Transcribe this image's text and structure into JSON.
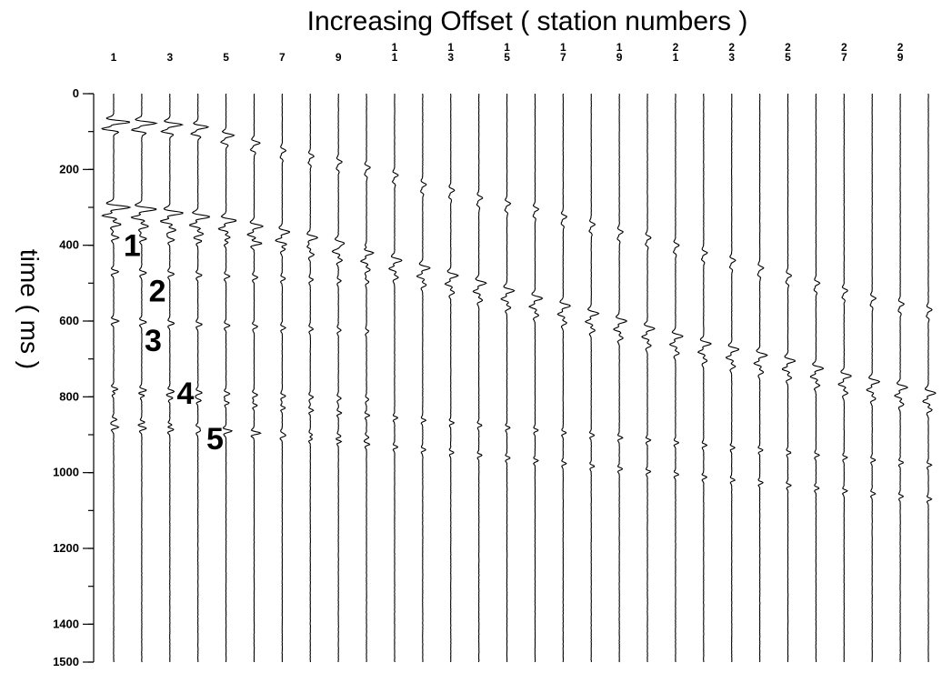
{
  "chart_data": {
    "type": "seismic-shot-gather",
    "title": "Increasing Offset ( station numbers )",
    "xlabel": "Increasing Offset ( station numbers )",
    "ylabel": "time ( ms )",
    "ylim": [
      0,
      1500
    ],
    "y_major_ticks": [
      0,
      200,
      400,
      600,
      800,
      1000,
      1200,
      1400,
      1500
    ],
    "y_minor_step": 100,
    "stations": [
      1,
      2,
      3,
      4,
      5,
      6,
      7,
      8,
      9,
      10,
      11,
      12,
      13,
      14,
      15,
      16,
      17,
      18,
      19,
      20,
      21,
      22,
      23,
      24,
      25,
      26,
      27,
      28,
      29,
      30
    ],
    "station_tick_labels": [
      {
        "station": 1,
        "lines": [
          "1"
        ]
      },
      {
        "station": 3,
        "lines": [
          "3"
        ]
      },
      {
        "station": 5,
        "lines": [
          "5"
        ]
      },
      {
        "station": 7,
        "lines": [
          "7"
        ]
      },
      {
        "station": 9,
        "lines": [
          "9"
        ]
      },
      {
        "station": 11,
        "lines": [
          "1",
          "1"
        ]
      },
      {
        "station": 13,
        "lines": [
          "1",
          "3"
        ]
      },
      {
        "station": 15,
        "lines": [
          "1",
          "5"
        ]
      },
      {
        "station": 17,
        "lines": [
          "1",
          "7"
        ]
      },
      {
        "station": 19,
        "lines": [
          "1",
          "9"
        ]
      },
      {
        "station": 21,
        "lines": [
          "2",
          "1"
        ]
      },
      {
        "station": 23,
        "lines": [
          "2",
          "3"
        ]
      },
      {
        "station": 25,
        "lines": [
          "2",
          "5"
        ]
      },
      {
        "station": 27,
        "lines": [
          "2",
          "7"
        ]
      },
      {
        "station": 29,
        "lines": [
          "2",
          "9"
        ]
      }
    ],
    "events": [
      {
        "label": "1",
        "t0_ms": 380,
        "moveout_ms_per_station": 0
      },
      {
        "label": "2",
        "t0_ms": 470,
        "moveout_ms_per_station": 0
      },
      {
        "label": "3",
        "t0_ms": 600,
        "moveout_ms_per_station": 0
      },
      {
        "label": "4",
        "t0_ms": 780,
        "moveout_ms_per_station": 0
      },
      {
        "label": "5",
        "t0_ms": 880,
        "moveout_ms_per_station": 0
      }
    ],
    "first_arrivals_ms": [
      75,
      78,
      82,
      88,
      110,
      130,
      150,
      165,
      180,
      195,
      215,
      240,
      255,
      275,
      290,
      305,
      325,
      345,
      365,
      380,
      400,
      420,
      440,
      460,
      480,
      500,
      520,
      540,
      555,
      570
    ],
    "refracted_arrivals_ms": [
      300,
      305,
      315,
      325,
      335,
      350,
      365,
      380,
      395,
      420,
      440,
      460,
      480,
      500,
      520,
      540,
      560,
      580,
      600,
      620,
      640,
      660,
      675,
      690,
      705,
      725,
      745,
      760,
      775,
      790
    ],
    "late_events_ms": [
      {
        "station_from": 1,
        "station_to": 30,
        "t_ms_at_first": 790,
        "t_ms_at_last": 980
      },
      {
        "station_from": 1,
        "station_to": 30,
        "t_ms_at_first": 860,
        "t_ms_at_last": 1070
      }
    ],
    "grid": false,
    "legend": "none"
  }
}
